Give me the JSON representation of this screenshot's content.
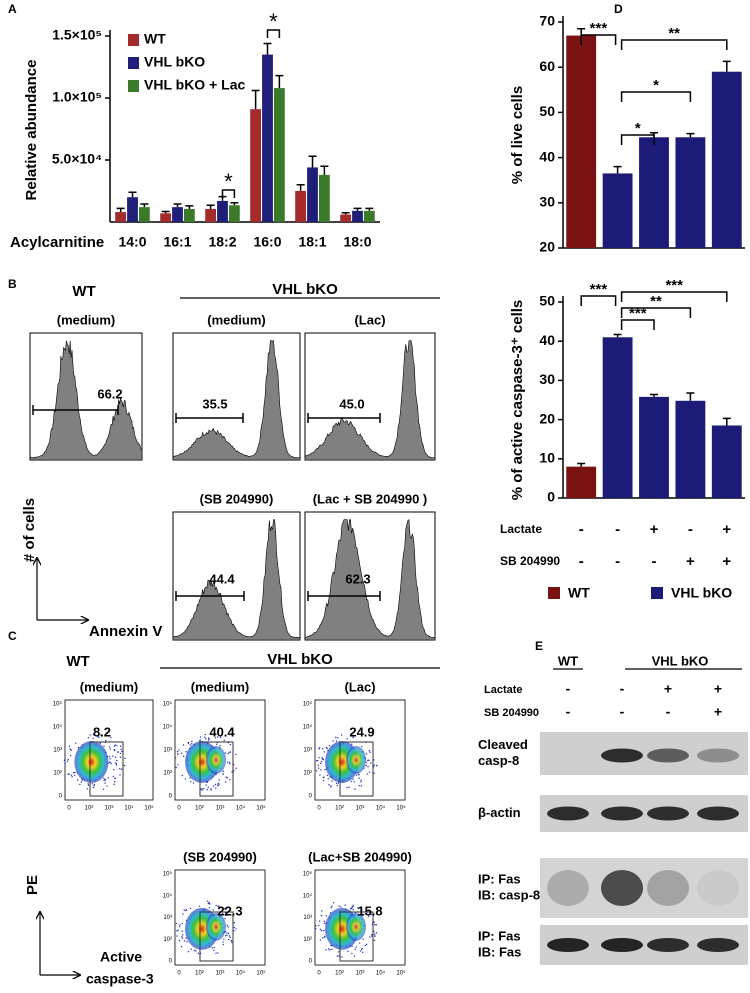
{
  "panel_labels": [
    "A",
    "B",
    "C",
    "D",
    "E"
  ],
  "chart_data": [
    {
      "type": "bar",
      "ylabel": "Relative abundance",
      "xlabel": "Acylcarnitine",
      "categories": [
        "14:0",
        "16:1",
        "18:2",
        "16:0",
        "18:1",
        "18:0"
      ],
      "series": [
        {
          "name": "WT",
          "color": "#a52a2a",
          "values": [
            8000,
            7000,
            10500,
            91000,
            25000,
            6000
          ],
          "errors": [
            3000,
            1500,
            3000,
            15000,
            5000,
            1500
          ]
        },
        {
          "name": "VHL bKO",
          "color": "#1f1f7a",
          "values": [
            20000,
            12000,
            17000,
            135000,
            44000,
            9000
          ],
          "errors": [
            4000,
            2500,
            3500,
            9000,
            9000,
            2000
          ]
        },
        {
          "name": "VHL bKO + Lac",
          "color": "#3a7a2a",
          "values": [
            12000,
            10500,
            13500,
            108000,
            38000,
            9000
          ],
          "errors": [
            2500,
            2500,
            2000,
            10000,
            7000,
            2000
          ]
        }
      ],
      "ylim": [
        0,
        150000
      ],
      "yticks": [
        {
          "value": 50000,
          "label": "5.0×10⁴"
        },
        {
          "value": 100000,
          "label": "1.0×10⁵"
        },
        {
          "value": 150000,
          "label": "1.5×10⁵"
        }
      ],
      "annotations": [
        "*",
        "*"
      ]
    },
    {
      "type": "bar",
      "ylabel": "% of live cells",
      "categories": [
        null,
        null,
        null,
        null,
        null
      ],
      "values": [
        67,
        36.5,
        44.5,
        44.5,
        59
      ],
      "errors": [
        1.5,
        1.5,
        1,
        0.8,
        2.3
      ],
      "colors": [
        "#7a1212",
        "#1c1c78",
        "#1c1c78",
        "#1c1c78",
        "#1c1c78"
      ],
      "ylim": [
        20,
        70
      ],
      "yticks": [
        20,
        30,
        40,
        50,
        60,
        70
      ],
      "annotations": [
        "***",
        "**",
        "*",
        "*"
      ]
    },
    {
      "type": "bar",
      "ylabel": "% of active caspase-3⁺ cells",
      "categories": [
        null,
        null,
        null,
        null,
        null
      ],
      "values": [
        8,
        41,
        25.8,
        24.8,
        18.5
      ],
      "errors": [
        0.8,
        0.7,
        0.6,
        2,
        1.8
      ],
      "colors": [
        "#7a1212",
        "#1c1c78",
        "#1c1c78",
        "#1c1c78",
        "#1c1c78"
      ],
      "ylim": [
        0,
        50
      ],
      "yticks": [
        0,
        10,
        20,
        30,
        40,
        50
      ],
      "annotations": [
        "***",
        "***",
        "**",
        "***"
      ],
      "table": {
        "rows": [
          {
            "label": "Lactate",
            "cells": [
              "-",
              "-",
              "+",
              "-",
              "+"
            ]
          },
          {
            "label": "SB 204990",
            "cells": [
              "-",
              "-",
              "-",
              "+",
              "+"
            ]
          }
        ]
      },
      "legend": [
        {
          "name": "WT",
          "color": "#7a1212"
        },
        {
          "name": "VHL bKO",
          "color": "#1c1c78"
        }
      ]
    }
  ],
  "panel_b": {
    "groups": [
      "WT",
      "VHL bKO"
    ],
    "plots": [
      {
        "condition": "(medium)",
        "value": "66.2"
      },
      {
        "condition": "(medium)",
        "value": "35.5"
      },
      {
        "condition": "(Lac)",
        "value": "45.0"
      },
      {
        "condition": "(SB 204990)",
        "value": "44.4"
      },
      {
        "condition": "(Lac + SB 204990 )",
        "value": "62.3"
      }
    ],
    "y_axis": "# of cells",
    "x_axis": "Annexin V"
  },
  "panel_c": {
    "groups": [
      "WT",
      "VHL bKO"
    ],
    "plots": [
      {
        "condition": "(medium)",
        "value": "8.2"
      },
      {
        "condition": "(medium)",
        "value": "40.4"
      },
      {
        "condition": "(Lac)",
        "value": "24.9"
      },
      {
        "condition": "(SB 204990)",
        "value": "22.3"
      },
      {
        "condition": "(Lac+SB 204990)",
        "value": "15.8"
      }
    ],
    "ticks": [
      "0",
      "10²",
      "10³",
      "10⁴",
      "10⁵"
    ],
    "y_axis": "PE",
    "x_axis": [
      "Active",
      "caspase-3"
    ]
  },
  "panel_e": {
    "groups": [
      "WT",
      "VHL bKO"
    ],
    "treatments": [
      {
        "label": "Lactate",
        "cells": [
          "-",
          "-",
          "+",
          "+"
        ]
      },
      {
        "label": "SB 204990",
        "cells": [
          "-",
          "-",
          "-",
          "+"
        ]
      }
    ],
    "blots": [
      {
        "label": [
          "Cleaved",
          "casp-8"
        ]
      },
      {
        "label": [
          "β-actin"
        ]
      },
      {
        "label": [
          "IP: Fas",
          "IB: casp-8"
        ]
      },
      {
        "label": [
          "IP: Fas",
          "IB: Fas"
        ]
      }
    ]
  }
}
